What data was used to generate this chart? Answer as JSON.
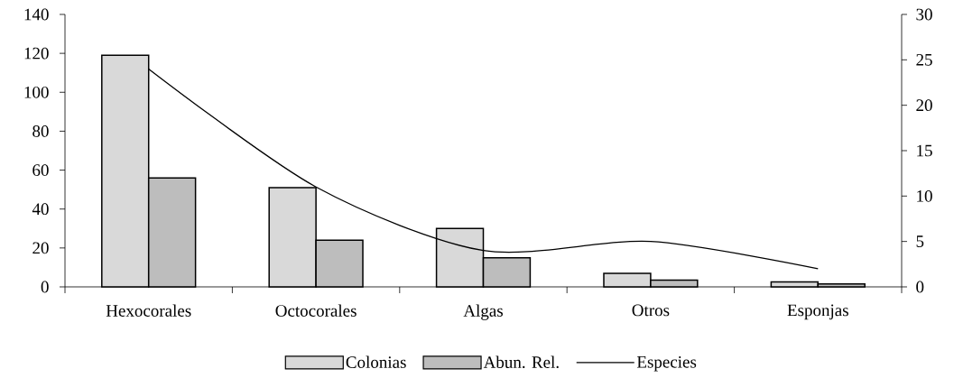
{
  "chart_data": {
    "type": "bar",
    "categories": [
      "Hexocorales",
      "Octocorales",
      "Algas",
      "Otros",
      "Esponjas"
    ],
    "series": [
      {
        "name": "Colonias",
        "color": "#d9d9d9",
        "values": [
          119,
          51,
          30,
          7,
          2.5
        ]
      },
      {
        "name": "Abun. Rel.",
        "color": "#bdbdbd",
        "values": [
          56,
          24,
          15,
          3.5,
          1.5
        ]
      },
      {
        "name": "Especies",
        "type": "line",
        "axis": "y2",
        "color": "#000000",
        "values": [
          24,
          11,
          4,
          5,
          2
        ]
      }
    ],
    "ylim": [
      0,
      140
    ],
    "yticks": [
      0,
      20,
      40,
      60,
      80,
      100,
      120,
      140
    ],
    "y2lim": [
      0,
      30
    ],
    "y2ticks": [
      0,
      5,
      10,
      15,
      20,
      25,
      30
    ],
    "legend": "bottom",
    "line_style": "solid"
  }
}
